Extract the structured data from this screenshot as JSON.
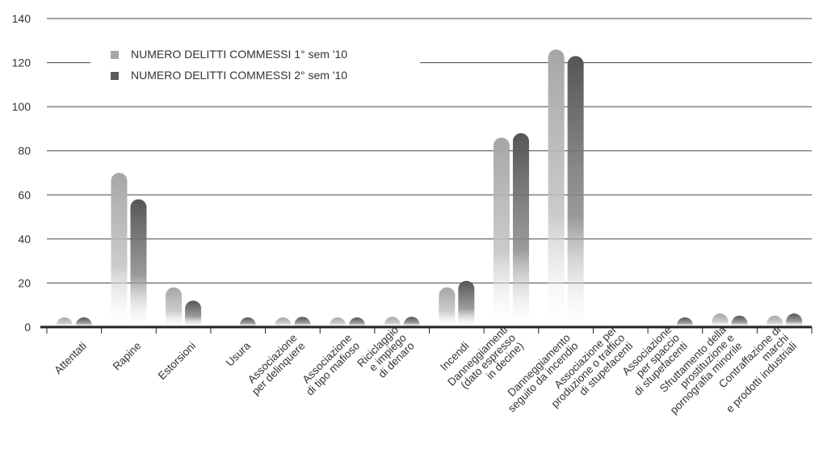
{
  "chart_data": {
    "type": "bar",
    "title": "",
    "xlabel": "",
    "ylabel": "",
    "ylim": [
      0,
      140
    ],
    "yticks": [
      0,
      20,
      40,
      60,
      80,
      100,
      120,
      140
    ],
    "grid": true,
    "legend_position": "top-left",
    "categories": [
      [
        "Attentati"
      ],
      [
        "Rapine"
      ],
      [
        "Estorsioni"
      ],
      [
        "Usura"
      ],
      [
        "Associazione",
        "per delinquere"
      ],
      [
        "Associazione",
        "di tipo mafioso"
      ],
      [
        "Riciclaggio",
        "e impiego",
        "di denaro"
      ],
      [
        "Incendi"
      ],
      [
        "Danneggiamenti",
        "(dato espresso",
        "in decine)"
      ],
      [
        "Danneggiamento",
        "seguito da incendio"
      ],
      [
        "Associazione per",
        "produzione o traffico",
        "di stupefacenti"
      ],
      [
        "Associazione",
        "per spaccio",
        "di stupefacenti"
      ],
      [
        "Sfruttamento della",
        "prostituzione e",
        "pornografia minorile"
      ],
      [
        "Contraffazione di",
        "marchi",
        "e prodotti industriali"
      ]
    ],
    "series": [
      {
        "name": "NUMERO DELITTI COMMESSI 1° sem '10",
        "color": "#a6a6a6",
        "values": [
          1,
          70,
          18,
          0,
          1,
          1,
          2,
          18,
          86,
          126,
          0,
          0,
          5,
          3
        ]
      },
      {
        "name": "NUMERO DELITTI COMMESSI 2° sem '10",
        "color": "#5a5a5a",
        "values": [
          1,
          58,
          12,
          1,
          2,
          1,
          2,
          21,
          88,
          123,
          0,
          1,
          3,
          5
        ]
      }
    ]
  }
}
